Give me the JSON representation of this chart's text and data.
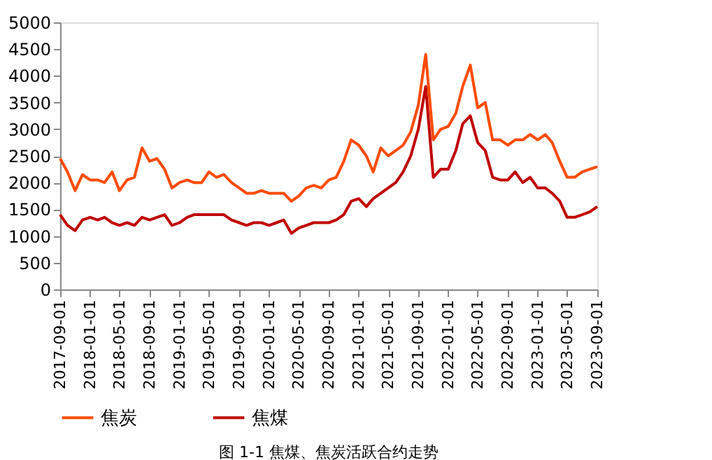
{
  "chart_data": {
    "type": "line",
    "annotations": [
      "图 1-1 焦煤、焦炭活跃合约走势"
    ],
    "x": [
      "2017-09",
      "2017-10",
      "2017-11",
      "2017-12",
      "2018-01",
      "2018-02",
      "2018-03",
      "2018-04",
      "2018-05",
      "2018-06",
      "2018-07",
      "2018-08",
      "2018-09",
      "2018-10",
      "2018-11",
      "2018-12",
      "2019-01",
      "2019-02",
      "2019-03",
      "2019-04",
      "2019-05",
      "2019-06",
      "2019-07",
      "2019-08",
      "2019-09",
      "2019-10",
      "2019-11",
      "2019-12",
      "2020-01",
      "2020-02",
      "2020-03",
      "2020-04",
      "2020-05",
      "2020-06",
      "2020-07",
      "2020-08",
      "2020-09",
      "2020-10",
      "2020-11",
      "2020-12",
      "2021-01",
      "2021-02",
      "2021-03",
      "2021-04",
      "2021-05",
      "2021-06",
      "2021-07",
      "2021-08",
      "2021-09",
      "2021-10",
      "2021-11",
      "2021-12",
      "2022-01",
      "2022-02",
      "2022-03",
      "2022-04",
      "2022-05",
      "2022-06",
      "2022-07",
      "2022-08",
      "2022-09",
      "2022-10",
      "2022-11",
      "2022-12",
      "2023-01",
      "2023-02",
      "2023-03",
      "2023-04",
      "2023-05",
      "2023-06",
      "2023-07",
      "2023-08",
      "2023-09"
    ],
    "series": [
      {
        "name": "焦炭",
        "color": "#ff4b00",
        "values": [
          2450,
          2200,
          1850,
          2150,
          2050,
          2050,
          2000,
          2200,
          1850,
          2050,
          2100,
          2650,
          2400,
          2450,
          2250,
          1900,
          2000,
          2050,
          2000,
          2000,
          2200,
          2100,
          2150,
          2000,
          1900,
          1800,
          1800,
          1850,
          1800,
          1800,
          1800,
          1650,
          1750,
          1900,
          1950,
          1900,
          2050,
          2100,
          2400,
          2800,
          2700,
          2500,
          2200,
          2650,
          2500,
          2600,
          2700,
          2950,
          3450,
          4400,
          2800,
          3000,
          3050,
          3300,
          3800,
          4200,
          3400,
          3500,
          2800,
          2800,
          2700,
          2800,
          2800,
          2900,
          2800,
          2900,
          2750,
          2400,
          2100,
          2100,
          2200,
          2250,
          2300
        ]
      },
      {
        "name": "焦煤",
        "color": "#c00000",
        "values": [
          1400,
          1200,
          1100,
          1300,
          1350,
          1300,
          1350,
          1250,
          1200,
          1250,
          1200,
          1350,
          1300,
          1350,
          1400,
          1200,
          1250,
          1350,
          1400,
          1400,
          1400,
          1400,
          1400,
          1300,
          1250,
          1200,
          1250,
          1250,
          1200,
          1250,
          1300,
          1050,
          1150,
          1200,
          1250,
          1250,
          1250,
          1300,
          1400,
          1650,
          1700,
          1550,
          1700,
          1800,
          1900,
          2000,
          2200,
          2500,
          3000,
          3800,
          2100,
          2250,
          2250,
          2600,
          3100,
          3250,
          2750,
          2600,
          2100,
          2050,
          2050,
          2200,
          2000,
          2100,
          1900,
          1900,
          1800,
          1650,
          1350,
          1350,
          1400,
          1450,
          1550
        ]
      }
    ],
    "xlim": [
      "2017-09-01",
      "2023-09-01"
    ],
    "xticks": [
      "2017-09-01",
      "2018-01-01",
      "2018-05-01",
      "2018-09-01",
      "2019-01-01",
      "2019-05-01",
      "2019-09-01",
      "2020-01-01",
      "2020-05-01",
      "2020-09-01",
      "2021-01-01",
      "2021-05-01",
      "2021-09-01",
      "2022-01-01",
      "2022-05-01",
      "2022-09-01",
      "2023-01-01",
      "2023-05-01",
      "2023-09-01"
    ],
    "ylim": [
      0,
      5000
    ],
    "yticks": [
      0,
      500,
      1000,
      1500,
      2000,
      2500,
      3000,
      3500,
      4000,
      4500,
      5000
    ],
    "grid": false,
    "legend": "bottom",
    "marker": "none",
    "line_style": "solid"
  }
}
